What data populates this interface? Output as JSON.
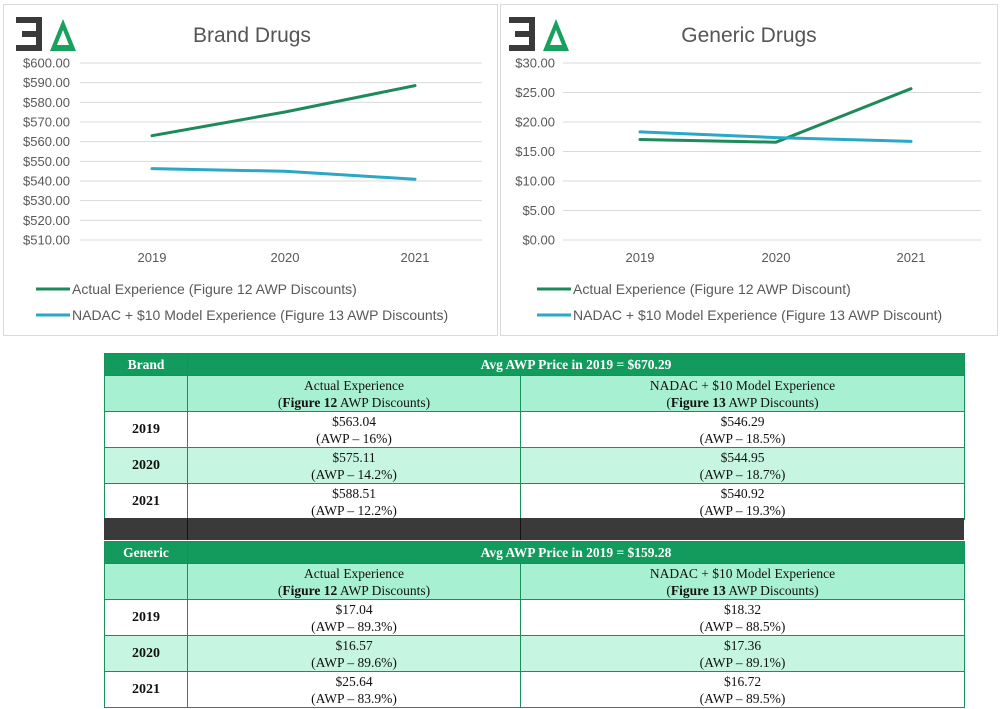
{
  "chart_data": [
    {
      "type": "line",
      "title": "Brand Drugs",
      "logo_text": "3A",
      "categories": [
        "2019",
        "2020",
        "2021"
      ],
      "ylim": [
        510,
        600
      ],
      "yticks": [
        "$600.00",
        "$590.00",
        "$580.00",
        "$570.00",
        "$560.00",
        "$550.00",
        "$540.00",
        "$530.00",
        "$520.00",
        "$510.00"
      ],
      "series": [
        {
          "name": "Actual Experience (Figure 12 AWP Discounts)",
          "values": [
            563.04,
            575.11,
            588.51
          ],
          "color": "#1e8a5a"
        },
        {
          "name": "NADAC + $10 Model Experience (Figure 13 AWP Discounts)",
          "values": [
            546.29,
            544.95,
            540.92
          ],
          "color": "#2aa8c6"
        }
      ]
    },
    {
      "type": "line",
      "title": "Generic Drugs",
      "logo_text": "3A",
      "categories": [
        "2019",
        "2020",
        "2021"
      ],
      "ylim": [
        0,
        30
      ],
      "yticks": [
        "$30.00",
        "$25.00",
        "$20.00",
        "$15.00",
        "$10.00",
        "$5.00",
        "$0.00"
      ],
      "series": [
        {
          "name": "Actual Experience (Figure 12 AWP Discount)",
          "values": [
            17.04,
            16.57,
            25.64
          ],
          "color": "#1e8a5a"
        },
        {
          "name": "NADAC + $10 Model Experience (Figure 13 AWP Discount)",
          "values": [
            18.32,
            17.36,
            16.72
          ],
          "color": "#2aa8c6"
        }
      ]
    }
  ],
  "tables": {
    "brand": {
      "label": "Brand",
      "avg_text": "Avg AWP Price in 2019 = $670.29",
      "col1": {
        "line1": "Actual Experience",
        "bold": "Figure 12",
        "rest": " AWP Discounts)"
      },
      "col2": {
        "line1": "NADAC + $10 Model Experience",
        "bold": "Figure 13",
        "rest": " AWP Discounts)"
      },
      "rows": [
        {
          "year": "2019",
          "a_price": "$563.04",
          "a_pct": "(AWP – 16%)",
          "b_price": "$546.29",
          "b_pct": "(AWP – 18.5%)"
        },
        {
          "year": "2020",
          "a_price": "$575.11",
          "a_pct": "(AWP – 14.2%)",
          "b_price": "$544.95",
          "b_pct": "(AWP – 18.7%)"
        },
        {
          "year": "2021",
          "a_price": "$588.51",
          "a_pct": "(AWP – 12.2%)",
          "b_price": "$540.92",
          "b_pct": "(AWP – 19.3%)"
        }
      ]
    },
    "generic": {
      "label": "Generic",
      "avg_text": "Avg AWP Price in 2019 = $159.28",
      "col1": {
        "line1": "Actual Experience",
        "bold": "Figure 12",
        "rest": " AWP Discounts)"
      },
      "col2": {
        "line1": "NADAC + $10 Model Experience",
        "bold": "Figure 13",
        "rest": " AWP Discounts)"
      },
      "rows": [
        {
          "year": "2019",
          "a_price": "$17.04",
          "a_pct": "(AWP – 89.3%)",
          "b_price": "$18.32",
          "b_pct": "(AWP – 88.5%)"
        },
        {
          "year": "2020",
          "a_price": "$16.57",
          "a_pct": "(AWP – 89.6%)",
          "b_price": "$17.36",
          "b_pct": "(AWP – 89.1%)"
        },
        {
          "year": "2021",
          "a_price": "$25.64",
          "a_pct": "(AWP – 83.9%)",
          "b_price": "$16.72",
          "b_pct": "(AWP – 89.5%)"
        }
      ]
    }
  }
}
